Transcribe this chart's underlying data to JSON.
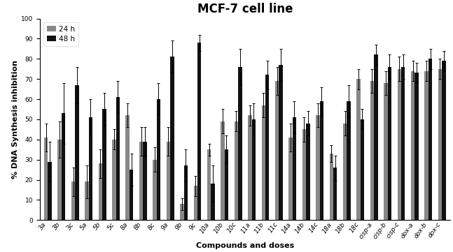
{
  "title": "MCF-7 cell line",
  "xlabel": "Compounds and doses",
  "ylabel": "% DNA Synthesis inhibition",
  "categories": [
    "3a",
    "3b",
    "3c",
    "5a",
    "5b",
    "5c",
    "8a",
    "8b",
    "8c",
    "9a",
    "9b",
    "9c",
    "10a",
    "10b",
    "10c",
    "11a",
    "11b",
    "11c",
    "14a",
    "14b",
    "14c",
    "18a",
    "18b",
    "18c",
    "cisp-a",
    "cisp-b",
    "cisp-c",
    "dox-a",
    "dox-b",
    "dox-c"
  ],
  "values_24h": [
    41,
    40,
    19,
    19,
    28,
    40,
    52,
    39,
    30,
    39,
    8,
    17,
    35,
    49,
    49,
    52,
    57,
    69,
    41,
    45,
    52,
    33,
    48,
    70,
    69,
    68,
    75,
    74,
    74,
    75
  ],
  "values_48h": [
    29,
    53,
    67,
    51,
    55,
    61,
    25,
    39,
    60,
    81,
    27,
    88,
    18,
    35,
    76,
    50,
    72,
    77,
    51,
    48,
    59,
    26,
    59,
    50,
    82,
    76,
    76,
    73,
    80,
    79
  ],
  "err_24h": [
    7,
    9,
    7,
    8,
    7,
    5,
    6,
    7,
    6,
    7,
    3,
    5,
    3,
    6,
    5,
    5,
    6,
    7,
    7,
    6,
    6,
    4,
    6,
    5,
    6,
    6,
    6,
    5,
    5,
    5
  ],
  "err_48h": [
    10,
    15,
    9,
    9,
    8,
    8,
    8,
    7,
    8,
    8,
    8,
    4,
    9,
    7,
    9,
    8,
    7,
    8,
    8,
    6,
    7,
    6,
    8,
    5,
    5,
    6,
    6,
    5,
    5,
    5
  ],
  "color_24h": "#888888",
  "color_48h": "#111111",
  "ylim": [
    0,
    100
  ],
  "yticks": [
    0,
    10,
    20,
    30,
    40,
    50,
    60,
    70,
    80,
    90,
    100
  ],
  "legend_24h": "24 h",
  "legend_48h": "48 h",
  "title_fontsize": 12,
  "label_fontsize": 8,
  "tick_fontsize": 6.5
}
